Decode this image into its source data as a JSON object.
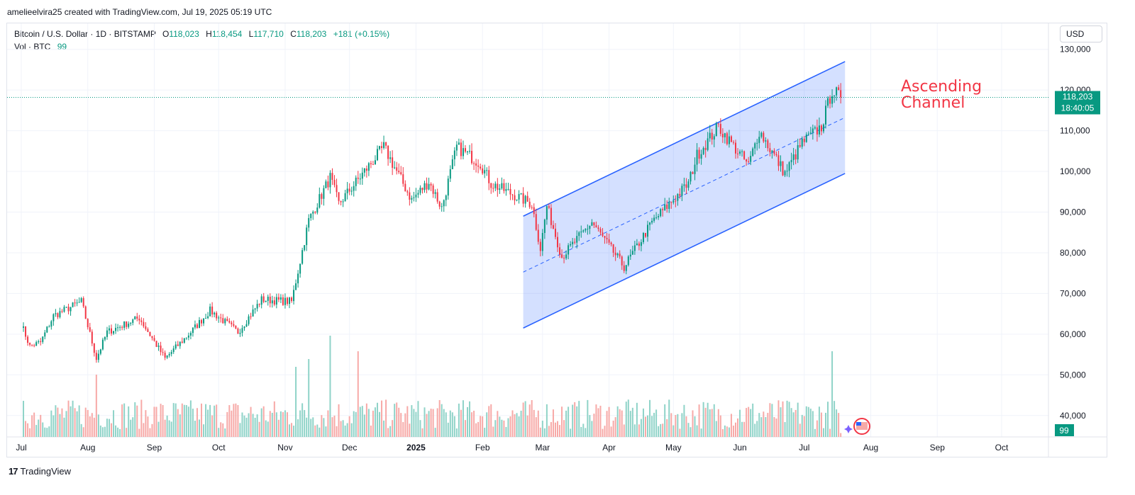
{
  "header": {
    "attribution": "amelieelvira25 created with TradingView.com, Jul 19, 2025 05:19 UTC"
  },
  "legend": {
    "symbol": "Bitcoin / U.S. Dollar · 1D · BITSTAMP",
    "open_label": "O",
    "open": "118,023",
    "high_label": "H",
    "high": "118,454",
    "low_label": "L",
    "low": "117,710",
    "close_label": "C",
    "close": "118,203",
    "change": "+181 (+0.15%)",
    "volume_label": "Vol · BTC",
    "volume_value": "99"
  },
  "currency_button": "USD",
  "footer": {
    "logo": "17",
    "brand": "TradingView"
  },
  "colors": {
    "up": "#089981",
    "down": "#f23645",
    "up_volume": "#8fd3c8",
    "down_volume": "#f7a9a7",
    "channel_line": "#2962ff",
    "channel_fill": "#2962ff",
    "annotation": "#f23645",
    "price_tag": "#089981"
  },
  "chart_data": {
    "type": "candlestick",
    "symbol": "Bitcoin / U.S. Dollar",
    "interval": "1D",
    "exchange": "BITSTAMP",
    "y_axis": {
      "ticks": [
        "40,000",
        "50,000",
        "60,000",
        "70,000",
        "80,000",
        "90,000",
        "100,000",
        "110,000",
        "120,000",
        "130,000"
      ],
      "range": [
        35000,
        132000
      ],
      "last_price_label": "118,203",
      "countdown_label": "18:40:05",
      "volume_label": "99"
    },
    "x_axis": {
      "ticks": [
        "Jul",
        "Aug",
        "Sep",
        "Oct",
        "Nov",
        "Dec",
        "2025",
        "Feb",
        "Mar",
        "Apr",
        "May",
        "Jun",
        "Jul",
        "Aug",
        "Sep",
        "Oct"
      ],
      "bold_ticks": [
        "2025"
      ],
      "start": "2024-07-01"
    },
    "last_price": 118203,
    "price_path_anchors": [
      {
        "date": "2024-07-01",
        "price": 62500
      },
      {
        "date": "2024-07-05",
        "price": 57000
      },
      {
        "date": "2024-07-10",
        "price": 58000
      },
      {
        "date": "2024-07-16",
        "price": 64500
      },
      {
        "date": "2024-07-29",
        "price": 68000
      },
      {
        "date": "2024-08-05",
        "price": 54000
      },
      {
        "date": "2024-08-10",
        "price": 60500
      },
      {
        "date": "2024-08-25",
        "price": 64000
      },
      {
        "date": "2024-09-06",
        "price": 54000
      },
      {
        "date": "2024-09-18",
        "price": 60500
      },
      {
        "date": "2024-09-27",
        "price": 65800
      },
      {
        "date": "2024-10-10",
        "price": 60500
      },
      {
        "date": "2024-10-21",
        "price": 68500
      },
      {
        "date": "2024-11-04",
        "price": 68000
      },
      {
        "date": "2024-11-12",
        "price": 88000
      },
      {
        "date": "2024-11-22",
        "price": 98500
      },
      {
        "date": "2024-11-26",
        "price": 92000
      },
      {
        "date": "2024-12-05",
        "price": 98000
      },
      {
        "date": "2024-12-17",
        "price": 106000
      },
      {
        "date": "2024-12-30",
        "price": 93000
      },
      {
        "date": "2025-01-07",
        "price": 97500
      },
      {
        "date": "2025-01-13",
        "price": 91000
      },
      {
        "date": "2025-01-20",
        "price": 106000
      },
      {
        "date": "2025-01-31",
        "price": 102000
      },
      {
        "date": "2025-02-05",
        "price": 97000
      },
      {
        "date": "2025-02-24",
        "price": 92000
      },
      {
        "date": "2025-02-28",
        "price": 81000
      },
      {
        "date": "2025-03-03",
        "price": 91500
      },
      {
        "date": "2025-03-10",
        "price": 79000
      },
      {
        "date": "2025-03-24",
        "price": 87500
      },
      {
        "date": "2025-04-08",
        "price": 76500
      },
      {
        "date": "2025-04-21",
        "price": 87500
      },
      {
        "date": "2025-05-08",
        "price": 97000
      },
      {
        "date": "2025-05-12",
        "price": 104000
      },
      {
        "date": "2025-05-22",
        "price": 111000
      },
      {
        "date": "2025-06-05",
        "price": 101500
      },
      {
        "date": "2025-06-10",
        "price": 110000
      },
      {
        "date": "2025-06-22",
        "price": 99500
      },
      {
        "date": "2025-06-30",
        "price": 107000
      },
      {
        "date": "2025-07-09",
        "price": 111000
      },
      {
        "date": "2025-07-14",
        "price": 120000
      },
      {
        "date": "2025-07-18",
        "price": 118203
      }
    ],
    "volume_spikes": [
      {
        "date": "2024-08-05",
        "level": 0.8
      },
      {
        "date": "2024-11-06",
        "level": 0.9
      },
      {
        "date": "2024-11-12",
        "level": 1.0
      },
      {
        "date": "2024-11-22",
        "level": 1.3
      },
      {
        "date": "2024-12-05",
        "level": 1.1
      },
      {
        "date": "2025-07-14",
        "level": 1.1
      }
    ],
    "annotations": [
      {
        "type": "ascending_channel",
        "label_line1": "Ascending",
        "label_line2": "Channel",
        "start": "2025-02-20",
        "end": "2025-07-20",
        "upper": [
          89000,
          127000
        ],
        "lower": [
          61500,
          99500
        ]
      }
    ]
  }
}
